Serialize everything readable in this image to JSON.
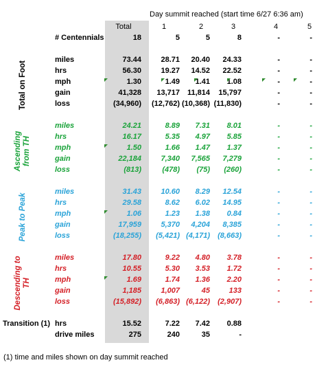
{
  "header": {
    "title": "Day summit reached (start time 6/27 6:36 am)",
    "columns": [
      "Total",
      "1",
      "2",
      "3",
      "4",
      "5"
    ]
  },
  "centennials": {
    "label": "# Centennials",
    "values": [
      "18",
      "5",
      "5",
      "8",
      "-",
      "-"
    ]
  },
  "sections": [
    {
      "title": "Total on Foot",
      "color": "#000000",
      "rows": [
        {
          "label": "miles",
          "values": [
            "73.44",
            "28.71",
            "20.40",
            "24.33",
            "-",
            "-"
          ]
        },
        {
          "label": "hrs",
          "values": [
            "56.30",
            "19.27",
            "14.52",
            "22.52",
            "-",
            "-"
          ]
        },
        {
          "label": "mph",
          "values": [
            "1.30",
            "1.49",
            "1.41",
            "1.08",
            "-",
            "-"
          ]
        },
        {
          "label": "gain",
          "values": [
            "41,328",
            "13,717",
            "11,814",
            "15,797",
            "-",
            "-"
          ]
        },
        {
          "label": "loss",
          "values": [
            "(34,960)",
            "(12,762)",
            "(10,368)",
            "(11,830)",
            "-",
            "-"
          ]
        }
      ]
    },
    {
      "title": "Ascending from TH",
      "color": "#1aa33a",
      "rows": [
        {
          "label": "miles",
          "values": [
            "24.21",
            "8.89",
            "7.31",
            "8.01",
            "-",
            "-"
          ]
        },
        {
          "label": "hrs",
          "values": [
            "16.17",
            "5.35",
            "4.97",
            "5.85",
            "-",
            "-"
          ]
        },
        {
          "label": "mph",
          "values": [
            "1.50",
            "1.66",
            "1.47",
            "1.37",
            "-",
            "-"
          ]
        },
        {
          "label": "gain",
          "values": [
            "22,184",
            "7,340",
            "7,565",
            "7,279",
            "-",
            "-"
          ]
        },
        {
          "label": "loss",
          "values": [
            "(813)",
            "(478)",
            "(75)",
            "(260)",
            "-",
            "-"
          ]
        }
      ]
    },
    {
      "title": "Peak to Peak",
      "color": "#2aa3d8",
      "rows": [
        {
          "label": "miles",
          "values": [
            "31.43",
            "10.60",
            "8.29",
            "12.54",
            "-",
            "-"
          ]
        },
        {
          "label": "hrs",
          "values": [
            "29.58",
            "8.62",
            "6.02",
            "14.95",
            "-",
            "-"
          ]
        },
        {
          "label": "mph",
          "values": [
            "1.06",
            "1.23",
            "1.38",
            "0.84",
            "-",
            "-"
          ]
        },
        {
          "label": "gain",
          "values": [
            "17,959",
            "5,370",
            "4,204",
            "8,385",
            "-",
            "-"
          ]
        },
        {
          "label": "loss",
          "values": [
            "(18,255)",
            "(5,421)",
            "(4,171)",
            "(8,663)",
            "-",
            "-"
          ]
        }
      ]
    },
    {
      "title": "Descending to TH",
      "color": "#d41f26",
      "rows": [
        {
          "label": "miles",
          "values": [
            "17.80",
            "9.22",
            "4.80",
            "3.78",
            "-",
            "-"
          ]
        },
        {
          "label": "hrs",
          "values": [
            "10.55",
            "5.30",
            "3.53",
            "1.72",
            "-",
            "-"
          ]
        },
        {
          "label": "mph",
          "values": [
            "1.69",
            "1.74",
            "1.36",
            "2.20",
            "-",
            "-"
          ]
        },
        {
          "label": "gain",
          "values": [
            "1,185",
            "1,007",
            "45",
            "133",
            "-",
            "-"
          ]
        },
        {
          "label": "loss",
          "values": [
            "(15,892)",
            "(6,863)",
            "(6,122)",
            "(2,907)",
            "-",
            "-"
          ]
        }
      ]
    }
  ],
  "transition": {
    "label": "Transition (1)",
    "rows": [
      {
        "label": "hrs",
        "values": [
          "15.52",
          "7.22",
          "7.42",
          "0.88",
          "",
          ""
        ]
      },
      {
        "label": "drive miles",
        "values": [
          "275",
          "240",
          "35",
          "-",
          "",
          ""
        ]
      }
    ]
  },
  "footnote": "(1) time and miles shown on day summit reached"
}
